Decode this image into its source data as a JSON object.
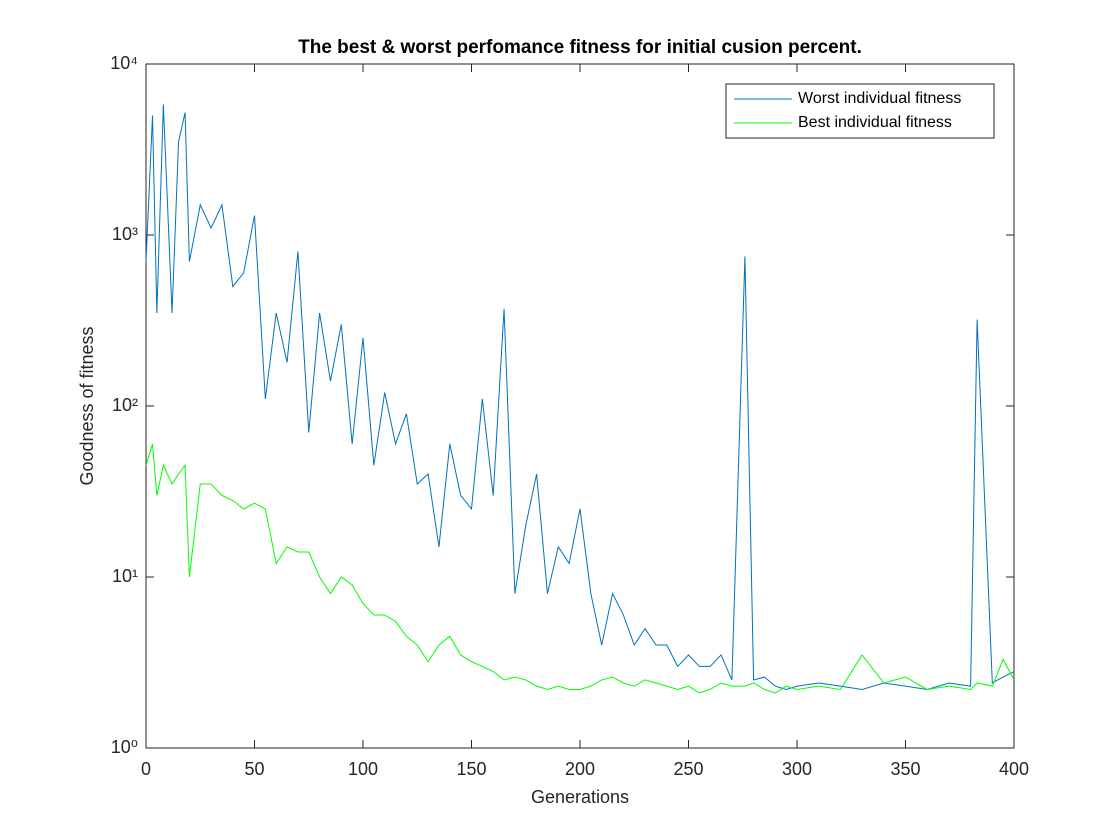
{
  "chart_data": {
    "type": "line",
    "title": "The best & worst perfomance fitness for initial cusion percent.",
    "x_label": "Generations",
    "y_label": "Goodness of fitness",
    "yscale": "log",
    "legend": "upper right",
    "x": [
      0,
      3,
      5,
      8,
      12,
      15,
      18,
      20,
      25,
      30,
      35,
      40,
      45,
      50,
      55,
      60,
      65,
      70,
      75,
      80,
      85,
      90,
      95,
      100,
      105,
      110,
      115,
      120,
      125,
      130,
      135,
      140,
      145,
      150,
      155,
      160,
      165,
      170,
      175,
      180,
      185,
      190,
      195,
      200,
      205,
      210,
      215,
      220,
      225,
      230,
      235,
      240,
      245,
      250,
      255,
      260,
      265,
      270,
      276,
      280,
      285,
      290,
      295,
      300,
      310,
      320,
      330,
      340,
      350,
      360,
      370,
      380,
      383,
      390,
      395,
      400
    ],
    "series": [
      {
        "name": "Worst individual fitness",
        "color": "#0072bd",
        "values": [
          700,
          5000,
          350,
          5800,
          350,
          3500,
          5200,
          700,
          1500,
          1100,
          1500,
          500,
          600,
          1300,
          110,
          350,
          180,
          800,
          70,
          350,
          140,
          300,
          60,
          250,
          45,
          120,
          60,
          90,
          35,
          40,
          15,
          60,
          30,
          25,
          110,
          30,
          370,
          8,
          20,
          40,
          8,
          15,
          12,
          25,
          8,
          4,
          8,
          6,
          4,
          5,
          4,
          4,
          3,
          3.5,
          3,
          3,
          3.5,
          2.5,
          750,
          2.5,
          2.6,
          2.3,
          2.2,
          2.3,
          2.4,
          2.3,
          2.2,
          2.4,
          2.3,
          2.2,
          2.4,
          2.3,
          320,
          2.4,
          2.6,
          2.8
        ]
      },
      {
        "name": "Best individual fitness",
        "color": "#00ff00",
        "values": [
          45,
          60,
          30,
          45,
          35,
          40,
          45,
          10,
          35,
          35,
          30,
          28,
          25,
          27,
          25,
          12,
          15,
          14,
          14,
          10,
          8,
          10,
          9,
          7,
          6,
          6,
          5.5,
          4.5,
          4,
          3.2,
          4,
          4.5,
          3.5,
          3.2,
          3,
          2.8,
          2.5,
          2.6,
          2.5,
          2.3,
          2.2,
          2.3,
          2.2,
          2.2,
          2.3,
          2.5,
          2.6,
          2.4,
          2.3,
          2.5,
          2.4,
          2.3,
          2.2,
          2.3,
          2.1,
          2.2,
          2.4,
          2.3,
          2.3,
          2.4,
          2.2,
          2.1,
          2.3,
          2.2,
          2.3,
          2.2,
          3.5,
          2.4,
          2.6,
          2.2,
          2.3,
          2.2,
          2.4,
          2.3,
          3.3,
          2.5
        ]
      }
    ],
    "xlim": [
      0,
      400
    ],
    "xticks": [
      0,
      50,
      100,
      150,
      200,
      250,
      300,
      350,
      400
    ],
    "ylim": [
      1,
      10000
    ],
    "yticks": [
      {
        "value": 1,
        "label": "10⁰"
      },
      {
        "value": 10,
        "label": "10¹"
      },
      {
        "value": 100,
        "label": "10²"
      },
      {
        "value": 1000,
        "label": "10³"
      },
      {
        "value": 10000,
        "label": "10⁴"
      }
    ]
  }
}
